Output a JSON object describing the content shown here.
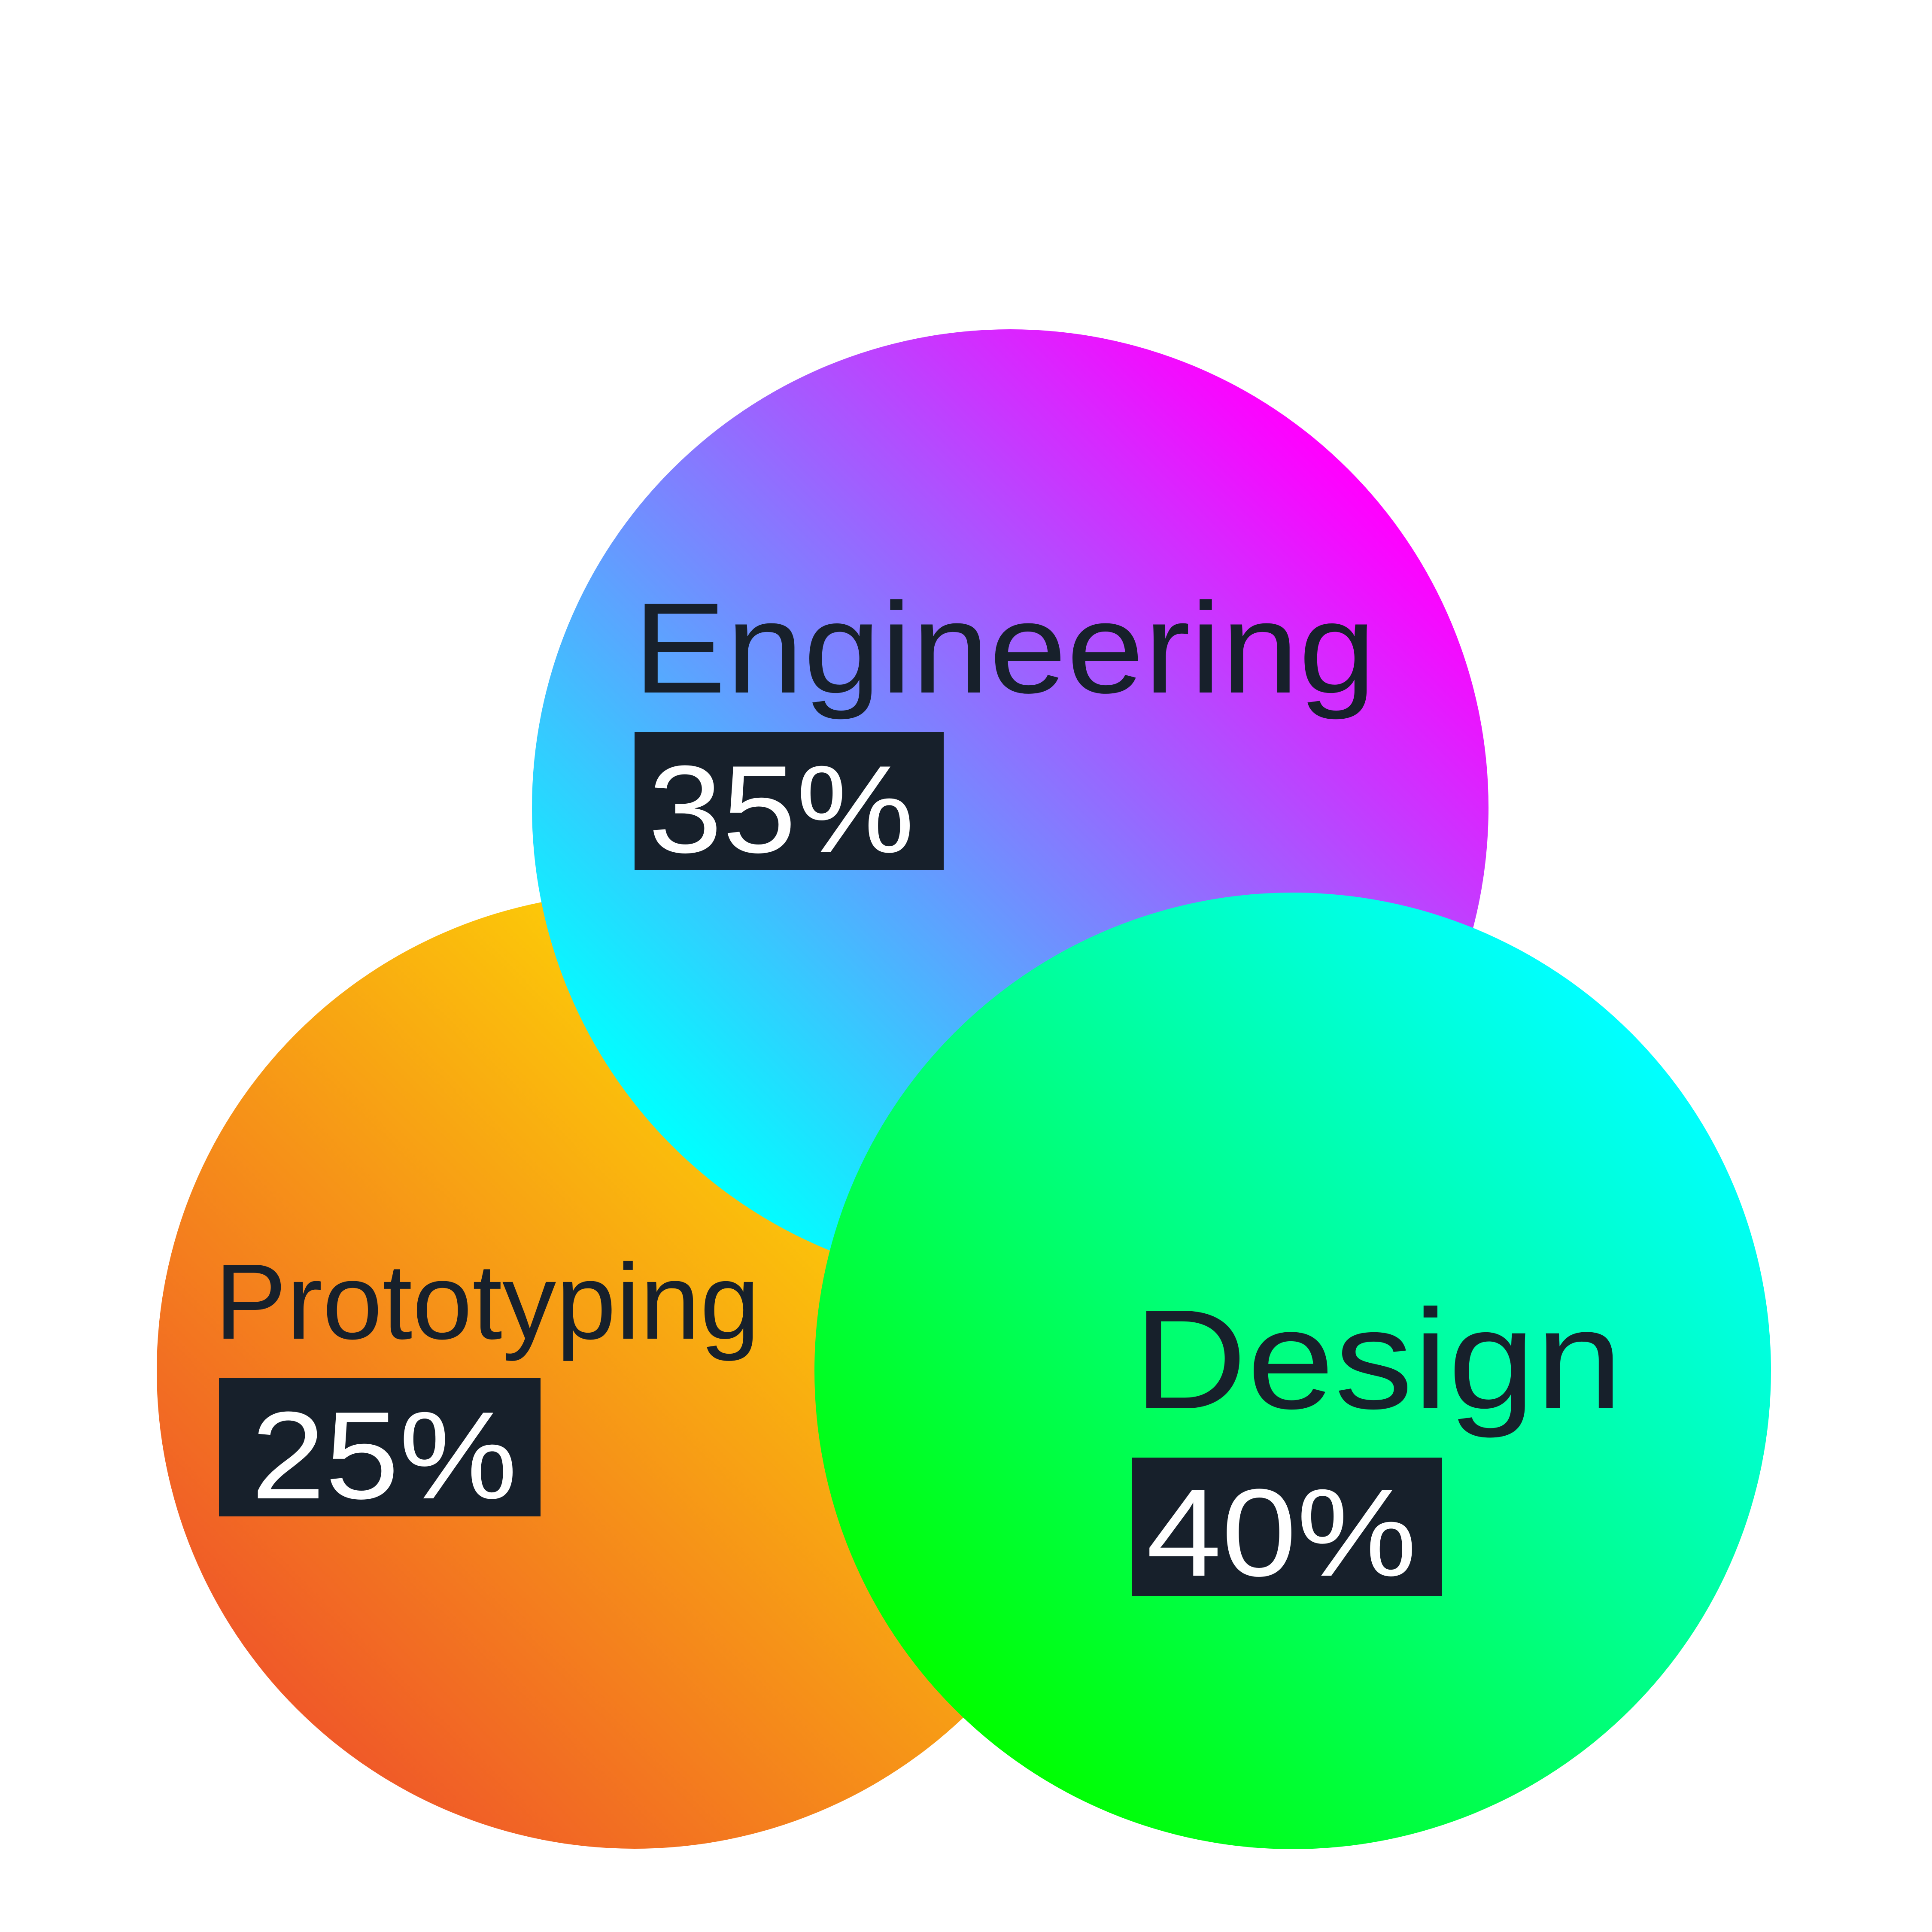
{
  "diagram": {
    "type": "overlapping-circles",
    "segments": [
      {
        "label": "Prototyping",
        "percent": "25%",
        "value": 25,
        "gradient": [
          "#f05a28",
          "#ffe600"
        ]
      },
      {
        "label": "Engineering",
        "percent": "35%",
        "value": 35,
        "gradient": [
          "#00ffff",
          "#ff00ff"
        ]
      },
      {
        "label": "Design",
        "percent": "40%",
        "value": 40,
        "gradient": [
          "#00ff00",
          "#00ffff"
        ]
      }
    ],
    "colors": {
      "text": "#17202b",
      "badge": "#17202b",
      "badge_text": "#ffffff",
      "background": "#ffffff"
    }
  }
}
